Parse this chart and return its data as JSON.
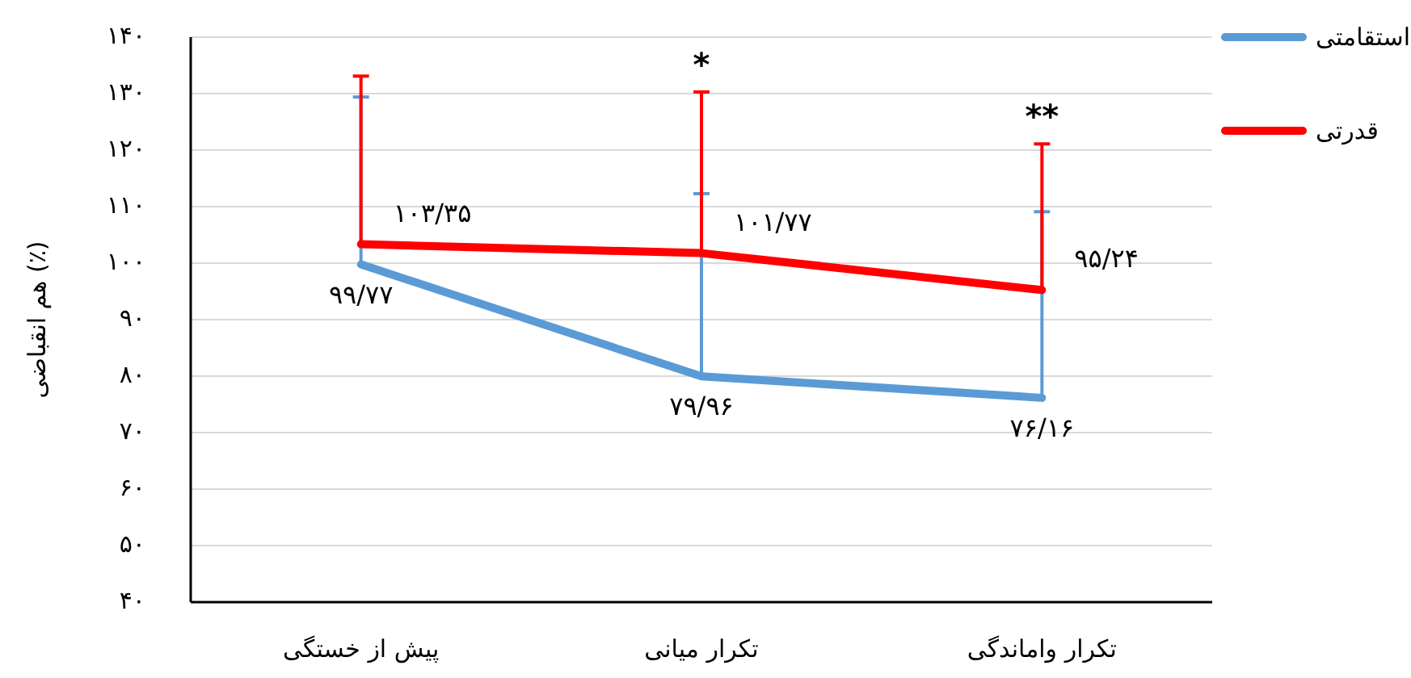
{
  "chart_data": {
    "type": "line",
    "ylabel": "(٪) هم انقباضی",
    "categories": [
      "پیش از خستگی",
      "تکرار میانی",
      "تکرار واماندگی"
    ],
    "series": [
      {
        "name": "استقامتی",
        "color": "#5b9bd5",
        "values": [
          99.77,
          79.96,
          76.16
        ],
        "value_labels": [
          "۹۹/۷۷",
          "۷۹/۹۶",
          "۷۶/۱۶"
        ],
        "errors": [
          [
            99.77,
            129.4
          ],
          [
            79.96,
            112.3
          ],
          [
            76.16,
            109.1
          ]
        ]
      },
      {
        "name": "قدرتی",
        "color": "#ff0000",
        "values": [
          103.35,
          101.77,
          95.24
        ],
        "value_labels": [
          "۱۰۳/۳۵",
          "۱۰۱/۷۷",
          "۹۵/۲۴"
        ],
        "errors": [
          [
            103.35,
            133.1
          ],
          [
            101.77,
            130.3
          ],
          [
            95.24,
            121.1
          ]
        ]
      }
    ],
    "ylim": [
      40,
      140
    ],
    "yticks": [
      {
        "value": 40,
        "label": "۴۰"
      },
      {
        "value": 50,
        "label": "۵۰"
      },
      {
        "value": 60,
        "label": "۶۰"
      },
      {
        "value": 70,
        "label": "۷۰"
      },
      {
        "value": 80,
        "label": "۸۰"
      },
      {
        "value": 90,
        "label": "۹۰"
      },
      {
        "value": 100,
        "label": "۱۰۰"
      },
      {
        "value": 110,
        "label": "۱۱۰"
      },
      {
        "value": 120,
        "label": "۱۲۰"
      },
      {
        "value": 130,
        "label": "۱۳۰"
      },
      {
        "value": 140,
        "label": "۱۴۰"
      }
    ],
    "annotations": [
      "*",
      "**"
    ],
    "grid": "y",
    "legend": "top right",
    "marker": "none",
    "line_style": "solid"
  }
}
